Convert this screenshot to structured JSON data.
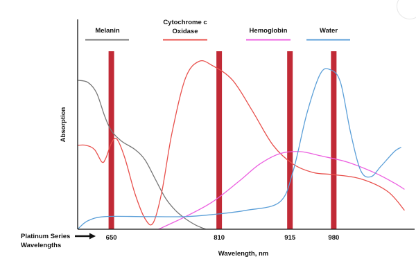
{
  "chart_data": {
    "type": "line",
    "title": "",
    "xlabel": "Wavelength, nm",
    "ylabel": "Absorption",
    "xlim": [
      600,
      1100
    ],
    "ylim": [
      0,
      1
    ],
    "grid": false,
    "legend_position": "top",
    "series": [
      {
        "name": "Melanin",
        "color": "#777777",
        "points": [
          [
            600,
            0.71
          ],
          [
            615,
            0.7
          ],
          [
            628,
            0.65
          ],
          [
            640,
            0.54
          ],
          [
            650,
            0.47
          ],
          [
            665,
            0.42
          ],
          [
            685,
            0.38
          ],
          [
            700,
            0.33
          ],
          [
            715,
            0.24
          ],
          [
            730,
            0.15
          ],
          [
            745,
            0.09
          ],
          [
            760,
            0.05
          ],
          [
            775,
            0.02
          ],
          [
            790,
            0.0
          ]
        ]
      },
      {
        "name": "Cytochrome c Oxidase",
        "color": "#e8504c",
        "points": [
          [
            600,
            0.4
          ],
          [
            612,
            0.4
          ],
          [
            625,
            0.38
          ],
          [
            636,
            0.32
          ],
          [
            642,
            0.34
          ],
          [
            650,
            0.41
          ],
          [
            658,
            0.43
          ],
          [
            670,
            0.34
          ],
          [
            685,
            0.17
          ],
          [
            700,
            0.05
          ],
          [
            712,
            0.03
          ],
          [
            725,
            0.18
          ],
          [
            740,
            0.46
          ],
          [
            760,
            0.72
          ],
          [
            780,
            0.8
          ],
          [
            800,
            0.78
          ],
          [
            830,
            0.71
          ],
          [
            860,
            0.56
          ],
          [
            890,
            0.4
          ],
          [
            920,
            0.31
          ],
          [
            950,
            0.27
          ],
          [
            980,
            0.26
          ],
          [
            1020,
            0.24
          ],
          [
            1060,
            0.18
          ],
          [
            1085,
            0.09
          ]
        ]
      },
      {
        "name": "Hemoglobin",
        "color": "#ec5fe0",
        "points": [
          [
            720,
            0.0
          ],
          [
            760,
            0.06
          ],
          [
            800,
            0.13
          ],
          [
            840,
            0.23
          ],
          [
            870,
            0.31
          ],
          [
            900,
            0.36
          ],
          [
            930,
            0.37
          ],
          [
            960,
            0.35
          ],
          [
            1000,
            0.32
          ],
          [
            1040,
            0.27
          ],
          [
            1070,
            0.22
          ],
          [
            1085,
            0.19
          ]
        ]
      },
      {
        "name": "Water",
        "color": "#5b9fd8",
        "points": [
          [
            600,
            0.0
          ],
          [
            615,
            0.04
          ],
          [
            640,
            0.06
          ],
          [
            700,
            0.06
          ],
          [
            760,
            0.06
          ],
          [
            800,
            0.07
          ],
          [
            850,
            0.09
          ],
          [
            900,
            0.13
          ],
          [
            920,
            0.28
          ],
          [
            940,
            0.55
          ],
          [
            960,
            0.74
          ],
          [
            975,
            0.76
          ],
          [
            990,
            0.7
          ],
          [
            1005,
            0.46
          ],
          [
            1020,
            0.28
          ],
          [
            1035,
            0.25
          ],
          [
            1050,
            0.3
          ],
          [
            1070,
            0.37
          ],
          [
            1080,
            0.39
          ]
        ]
      }
    ],
    "highlight_wavelengths": [
      650,
      810,
      915,
      980
    ],
    "highlight_color": "#c12a36",
    "x_tick_labels": [
      "650",
      "810",
      "915",
      "980"
    ],
    "platinum_label": "Platinum Series Wavelengths"
  }
}
